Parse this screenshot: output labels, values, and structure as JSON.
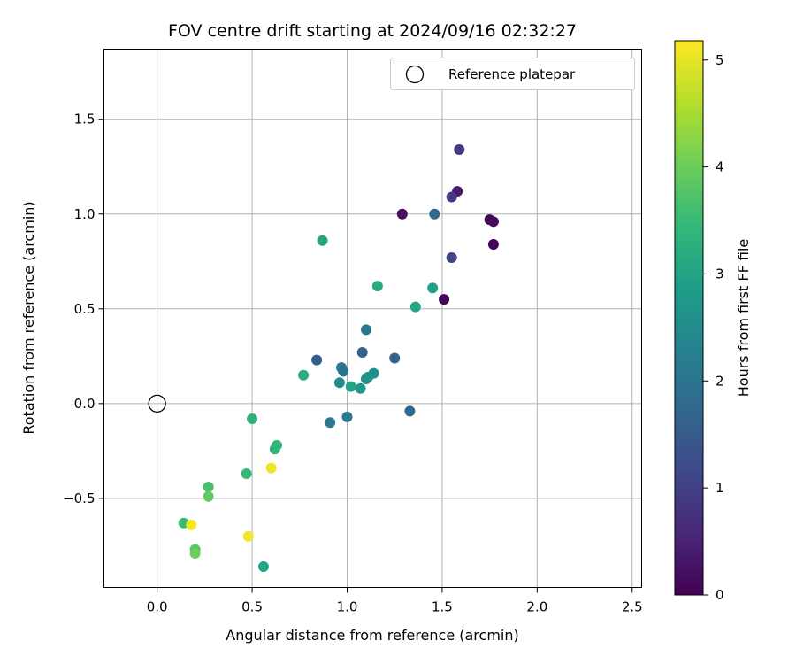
{
  "chart_data": {
    "type": "scatter",
    "title": "FOV centre drift starting at 2024/09/16 02:32:27",
    "xlabel": "Angular distance from reference (arcmin)",
    "ylabel": "Rotation from reference (arcmin)",
    "xlim": [
      -0.28,
      2.55
    ],
    "ylim": [
      -0.97,
      1.87
    ],
    "xticks": [
      0.0,
      0.5,
      1.0,
      1.5,
      2.0,
      2.5
    ],
    "xtick_labels": [
      "0.0",
      "0.5",
      "1.0",
      "1.5",
      "2.0",
      "2.5"
    ],
    "yticks": [
      -0.5,
      0.0,
      0.5,
      1.0,
      1.5
    ],
    "ytick_labels": [
      "−0.5",
      "0.0",
      "0.5",
      "1.0",
      "1.5"
    ],
    "grid": true,
    "legend": {
      "placement": "top-right",
      "entries": [
        "Reference platepar"
      ]
    },
    "reference_point": {
      "x": 0.0,
      "y": 0.0,
      "name": "Reference platepar"
    },
    "colorbar": {
      "label": "Hours from first FF file",
      "range": [
        0,
        5.18
      ],
      "ticks": [
        0,
        1,
        2,
        3,
        4,
        5
      ],
      "tick_labels": [
        "0",
        "1",
        "2",
        "3",
        "4",
        "5"
      ],
      "colormap": "viridis",
      "stops": [
        "#440154",
        "#482878",
        "#3e4989",
        "#31688e",
        "#26828e",
        "#1f9e89",
        "#35b779",
        "#6ece58",
        "#b5de2b",
        "#fde725"
      ]
    },
    "points": [
      {
        "x": 1.77,
        "y": 0.84,
        "h": 0.05
      },
      {
        "x": 1.51,
        "y": 0.55,
        "h": 0.1
      },
      {
        "x": 1.75,
        "y": 0.97,
        "h": 0.1
      },
      {
        "x": 1.77,
        "y": 0.96,
        "h": 0.15
      },
      {
        "x": 1.29,
        "y": 1.0,
        "h": 0.2
      },
      {
        "x": 1.58,
        "y": 1.12,
        "h": 0.35
      },
      {
        "x": 1.59,
        "y": 1.34,
        "h": 0.9
      },
      {
        "x": 1.55,
        "y": 1.09,
        "h": 0.9
      },
      {
        "x": 1.55,
        "y": 0.77,
        "h": 1.05
      },
      {
        "x": 0.84,
        "y": 0.23,
        "h": 1.55
      },
      {
        "x": 1.08,
        "y": 0.27,
        "h": 1.6
      },
      {
        "x": 1.46,
        "y": 1.0,
        "h": 1.75
      },
      {
        "x": 1.25,
        "y": 0.24,
        "h": 1.65
      },
      {
        "x": 1.33,
        "y": -0.04,
        "h": 1.75
      },
      {
        "x": 0.97,
        "y": 0.19,
        "h": 2.05
      },
      {
        "x": 0.98,
        "y": 0.17,
        "h": 2.0
      },
      {
        "x": 1.1,
        "y": 0.39,
        "h": 2.05
      },
      {
        "x": 0.91,
        "y": -0.1,
        "h": 2.1
      },
      {
        "x": 1.0,
        "y": -0.07,
        "h": 2.15
      },
      {
        "x": 0.96,
        "y": 0.11,
        "h": 2.5
      },
      {
        "x": 1.14,
        "y": 0.16,
        "h": 2.55
      },
      {
        "x": 1.1,
        "y": 0.13,
        "h": 2.6
      },
      {
        "x": 1.11,
        "y": 0.14,
        "h": 2.65
      },
      {
        "x": 1.07,
        "y": 0.08,
        "h": 2.75
      },
      {
        "x": 1.02,
        "y": 0.09,
        "h": 3.0
      },
      {
        "x": 1.45,
        "y": 0.61,
        "h": 2.95
      },
      {
        "x": 1.36,
        "y": 0.51,
        "h": 3.05
      },
      {
        "x": 0.87,
        "y": 0.86,
        "h": 3.05
      },
      {
        "x": 0.56,
        "y": -0.86,
        "h": 3.05
      },
      {
        "x": 1.16,
        "y": 0.62,
        "h": 3.15
      },
      {
        "x": 0.77,
        "y": 0.15,
        "h": 3.2
      },
      {
        "x": 0.5,
        "y": -0.08,
        "h": 3.3
      },
      {
        "x": 0.63,
        "y": -0.22,
        "h": 3.35
      },
      {
        "x": 0.62,
        "y": -0.24,
        "h": 3.4
      },
      {
        "x": 0.47,
        "y": -0.37,
        "h": 3.45
      },
      {
        "x": 0.14,
        "y": -0.63,
        "h": 3.5
      },
      {
        "x": 0.27,
        "y": -0.44,
        "h": 3.65
      },
      {
        "x": 0.2,
        "y": -0.77,
        "h": 3.8
      },
      {
        "x": 0.27,
        "y": -0.49,
        "h": 3.9
      },
      {
        "x": 0.2,
        "y": -0.79,
        "h": 4.0
      },
      {
        "x": 0.6,
        "y": -0.34,
        "h": 5.05
      },
      {
        "x": 0.18,
        "y": -0.64,
        "h": 5.1
      },
      {
        "x": 0.48,
        "y": -0.7,
        "h": 5.1
      }
    ]
  }
}
